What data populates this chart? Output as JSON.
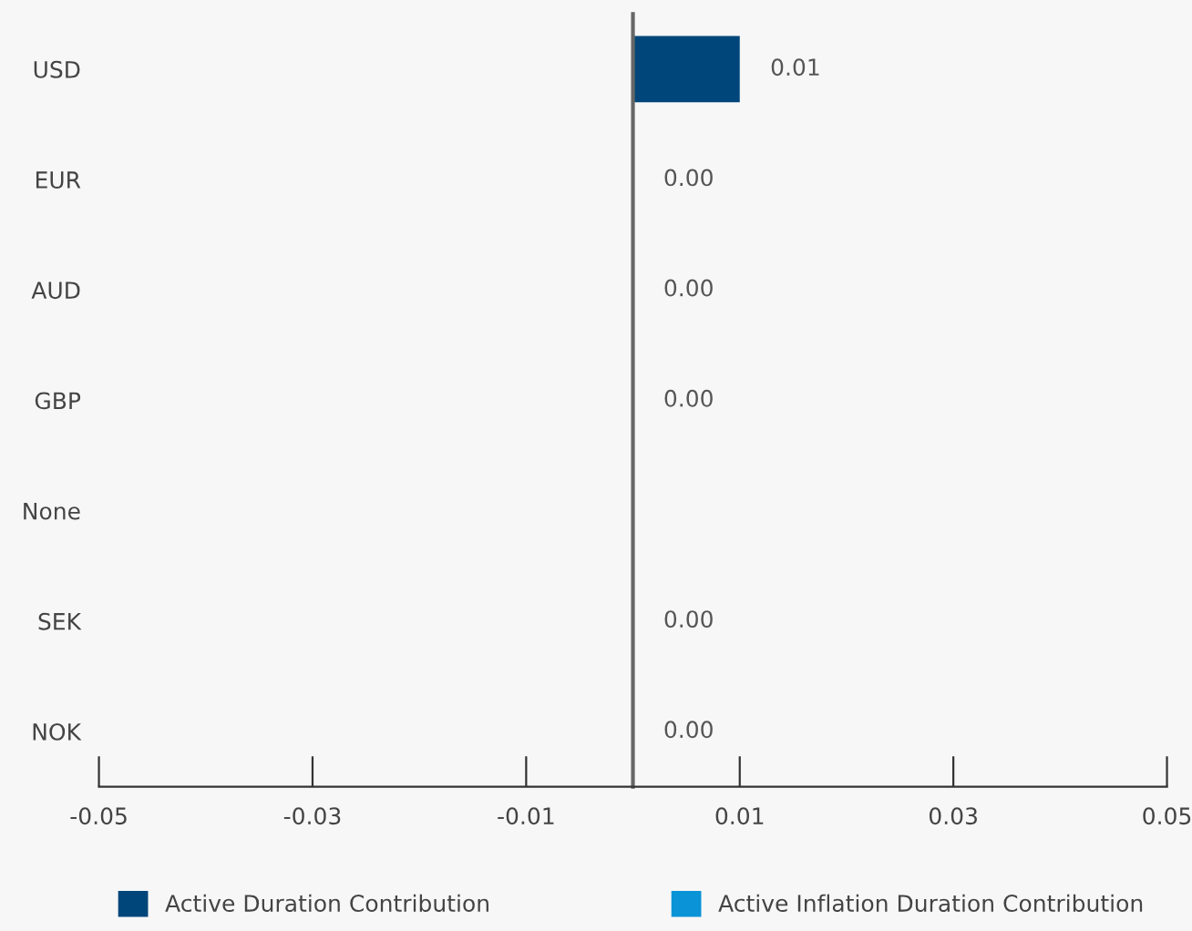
{
  "chart_data": {
    "type": "bar",
    "orientation": "horizontal",
    "categories": [
      "USD",
      "EUR",
      "AUD",
      "GBP",
      "None",
      "SEK",
      "NOK"
    ],
    "series": [
      {
        "name": "Active Duration Contribution",
        "color": "#00467a",
        "values": [
          0.01,
          0,
          0,
          0,
          null,
          0,
          0
        ],
        "value_labels": [
          "0.01",
          "0.00",
          "0.00",
          "0.00",
          null,
          "0.00",
          "0.00"
        ]
      },
      {
        "name": "Active Inflation Duration Contribution",
        "color": "#0a93d6",
        "values": [
          0,
          0,
          0,
          0,
          null,
          0,
          0
        ]
      }
    ],
    "xlim": [
      -0.05,
      0.05
    ],
    "xticks": [
      -0.05,
      -0.03,
      -0.01,
      0.01,
      0.03,
      0.05
    ],
    "grid": false,
    "legend": "bottom"
  }
}
